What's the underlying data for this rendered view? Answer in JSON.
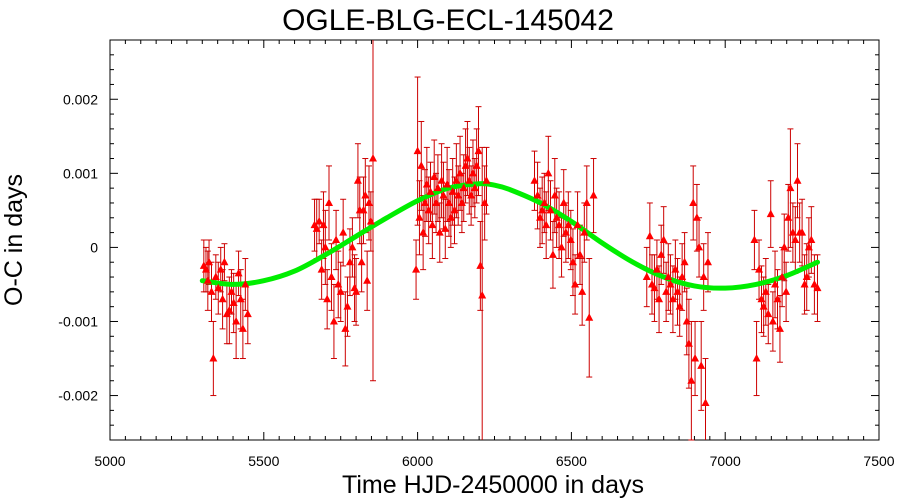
{
  "chart_data": {
    "type": "scatter",
    "title": "OGLE-BLG-ECL-145042",
    "xlabel": "Time HJD-2450000 in days",
    "ylabel": "O-C in days",
    "xlim": [
      5000,
      7500
    ],
    "ylim": [
      -0.0026,
      0.0028
    ],
    "xticks": [
      5000,
      5500,
      6000,
      6500,
      7000,
      7500
    ],
    "xtick_labels": [
      "5000",
      "5500",
      "6000",
      "6500",
      "7000",
      "7500"
    ],
    "yticks": [
      -0.002,
      -0.001,
      0,
      0.001,
      0.002
    ],
    "ytick_labels": [
      "-0.002",
      "-0.001",
      "0",
      "0.001",
      "0.002"
    ],
    "grid": false,
    "colors": {
      "points": "#ff0000",
      "errorbars": "#cc0000",
      "fit": "#00ee00",
      "axes": "#000000"
    },
    "series": [
      {
        "kind": "errorbar-points",
        "marker": "triangle",
        "points": [
          [
            5305,
            -0.00025,
            0.00035
          ],
          [
            5312,
            -0.0003,
            0.0003
          ],
          [
            5318,
            -0.00045,
            0.0004
          ],
          [
            5322,
            -0.0002,
            0.0003
          ],
          [
            5330,
            -0.0006,
            0.0004
          ],
          [
            5336,
            -0.0015,
            0.0005
          ],
          [
            5344,
            -0.0004,
            0.0003
          ],
          [
            5352,
            -0.00055,
            0.00035
          ],
          [
            5360,
            -0.0003,
            0.0003
          ],
          [
            5366,
            -0.0007,
            0.0004
          ],
          [
            5372,
            -0.0002,
            0.00025
          ],
          [
            5380,
            -0.0009,
            0.0004
          ],
          [
            5388,
            -0.00085,
            0.00045
          ],
          [
            5395,
            -0.0006,
            0.0003
          ],
          [
            5402,
            -0.00075,
            0.0004
          ],
          [
            5410,
            -0.001,
            0.0005
          ],
          [
            5418,
            -0.00035,
            0.0003
          ],
          [
            5425,
            -0.0007,
            0.0004
          ],
          [
            5432,
            -0.0011,
            0.0004
          ],
          [
            5440,
            -0.0005,
            0.00035
          ],
          [
            5448,
            -0.0009,
            0.0004
          ],
          [
            5665,
            0.0003,
            0.00035
          ],
          [
            5672,
            0.00025,
            0.0004
          ],
          [
            5680,
            0.00035,
            0.0003
          ],
          [
            5688,
            -0.0003,
            0.0004
          ],
          [
            5694,
            0.0003,
            0.00045
          ],
          [
            5700,
            0.0,
            0.0005
          ],
          [
            5706,
            -0.0007,
            0.0004
          ],
          [
            5712,
            0.0006,
            0.0005
          ],
          [
            5720,
            -0.0004,
            0.00045
          ],
          [
            5728,
            -0.001,
            0.0005
          ],
          [
            5735,
            0.0001,
            0.0004
          ],
          [
            5742,
            -0.0005,
            0.00045
          ],
          [
            5750,
            -0.0006,
            0.0004
          ],
          [
            5758,
            0.0002,
            0.00045
          ],
          [
            5765,
            -0.0011,
            0.0005
          ],
          [
            5772,
            -0.0008,
            0.0004
          ],
          [
            5780,
            -0.0002,
            0.00045
          ],
          [
            5788,
            0.0,
            0.0004
          ],
          [
            5795,
            -0.00055,
            0.00045
          ],
          [
            5800,
            -0.0006,
            0.00045
          ],
          [
            5806,
            0.0009,
            0.0005
          ],
          [
            5812,
            0.0005,
            0.00045
          ],
          [
            5818,
            -0.0002,
            0.0004
          ],
          [
            5824,
            0.0005,
            0.00045
          ],
          [
            5830,
            0.0007,
            0.0005
          ],
          [
            5836,
            -0.00045,
            0.0004
          ],
          [
            5842,
            0.0006,
            0.0005
          ],
          [
            5848,
            0.00035,
            0.0004
          ],
          [
            5855,
            0.0012,
            0.003
          ],
          [
            5995,
            -0.0003,
            0.0004
          ],
          [
            6000,
            0.0013,
            0.001
          ],
          [
            6006,
            0.0004,
            0.0005
          ],
          [
            6012,
            0.0011,
            0.0006
          ],
          [
            6018,
            0.0002,
            0.0005
          ],
          [
            6024,
            0.0006,
            0.00045
          ],
          [
            6030,
            0.00085,
            0.0005
          ],
          [
            6036,
            0.0005,
            0.00045
          ],
          [
            6042,
            0.00075,
            0.0004
          ],
          [
            6048,
            0.0003,
            0.00045
          ],
          [
            6054,
            0.00095,
            0.0005
          ],
          [
            6060,
            0.0006,
            0.0004
          ],
          [
            6066,
            0.0008,
            0.00045
          ],
          [
            6072,
            0.0002,
            0.0004
          ],
          [
            6078,
            0.0009,
            0.0005
          ],
          [
            6084,
            0.0007,
            0.00045
          ],
          [
            6090,
            0.00025,
            0.0004
          ],
          [
            6096,
            0.00085,
            0.0005
          ],
          [
            6102,
            0.0006,
            0.00045
          ],
          [
            6108,
            0.0004,
            0.0004
          ],
          [
            6114,
            0.00075,
            0.00045
          ],
          [
            6120,
            0.0005,
            0.00045
          ],
          [
            6126,
            0.0009,
            0.0005
          ],
          [
            6132,
            0.0007,
            0.0004
          ],
          [
            6138,
            0.001,
            0.0005
          ],
          [
            6144,
            0.0006,
            0.0004
          ],
          [
            6150,
            0.0008,
            0.00045
          ],
          [
            6156,
            0.0011,
            0.0005
          ],
          [
            6162,
            0.0012,
            0.0005
          ],
          [
            6168,
            0.0009,
            0.00045
          ],
          [
            6174,
            0.0007,
            0.0004
          ],
          [
            6180,
            0.001,
            0.00045
          ],
          [
            6186,
            0.0008,
            0.0004
          ],
          [
            6192,
            0.0011,
            0.0005
          ],
          [
            6198,
            0.0013,
            0.0006
          ],
          [
            6204,
            -0.00025,
            0.0006
          ],
          [
            6210,
            -0.00065,
            0.002
          ],
          [
            6218,
            0.0006,
            0.0005
          ],
          [
            6224,
            0.0009,
            0.00045
          ],
          [
            6380,
            0.0009,
            0.0004
          ],
          [
            6390,
            0.0007,
            0.00045
          ],
          [
            6398,
            0.0004,
            0.0004
          ],
          [
            6405,
            0.0005,
            0.00045
          ],
          [
            6412,
            0.0006,
            0.0004
          ],
          [
            6418,
            0.0003,
            0.00045
          ],
          [
            6425,
            0.001,
            0.0005
          ],
          [
            6432,
            0.0005,
            0.0004
          ],
          [
            6440,
            -0.0001,
            0.00045
          ],
          [
            6446,
            0.0007,
            0.0005
          ],
          [
            6452,
            0.0004,
            0.0004
          ],
          [
            6460,
            0.0003,
            0.00045
          ],
          [
            6468,
            0.0,
            0.0004
          ],
          [
            6475,
            0.0006,
            0.00045
          ],
          [
            6482,
            0.0002,
            0.0004
          ],
          [
            6490,
            0.0003,
            0.00045
          ],
          [
            6498,
            0.0001,
            0.0004
          ],
          [
            6505,
            -0.0002,
            0.00045
          ],
          [
            6512,
            -0.0005,
            0.0004
          ],
          [
            6520,
            0.0003,
            0.00045
          ],
          [
            6528,
            -0.0001,
            0.0004
          ],
          [
            6535,
            -0.0006,
            0.00045
          ],
          [
            6542,
            0.0002,
            0.0004
          ],
          [
            6550,
            0.0006,
            0.0005
          ],
          [
            6558,
            -0.00095,
            0.0008
          ],
          [
            6572,
            0.0007,
            0.0005
          ],
          [
            6745,
            -0.0004,
            0.0004
          ],
          [
            6755,
            0.00015,
            0.00045
          ],
          [
            6762,
            -0.0005,
            0.0004
          ],
          [
            6770,
            -0.00055,
            0.00045
          ],
          [
            6778,
            -0.0003,
            0.0004
          ],
          [
            6785,
            -0.0007,
            0.00045
          ],
          [
            6792,
            -0.0001,
            0.0004
          ],
          [
            6800,
            0.0001,
            0.00045
          ],
          [
            6808,
            -0.0006,
            0.0004
          ],
          [
            6815,
            -0.0004,
            0.00045
          ],
          [
            6822,
            -0.0005,
            0.0004
          ],
          [
            6830,
            -0.0007,
            0.00045
          ],
          [
            6838,
            -0.0003,
            0.0004
          ],
          [
            6845,
            -0.0006,
            0.00045
          ],
          [
            6852,
            -0.0008,
            0.0004
          ],
          [
            6860,
            -0.0004,
            0.00045
          ],
          [
            6868,
            -0.0002,
            0.0004
          ],
          [
            6875,
            -0.001,
            0.00045
          ],
          [
            6882,
            -0.0013,
            0.0006
          ],
          [
            6890,
            -0.0018,
            0.0008
          ],
          [
            6896,
            0.0006,
            0.0005
          ],
          [
            6902,
            -0.0015,
            0.0005
          ],
          [
            6908,
            0.0004,
            0.00045
          ],
          [
            6915,
            0.0,
            0.0004
          ],
          [
            6922,
            -0.0016,
            0.0006
          ],
          [
            6930,
            -0.0004,
            0.00045
          ],
          [
            6936,
            -0.0021,
            0.0006
          ],
          [
            6944,
            -0.0002,
            0.0004
          ],
          [
            7095,
            0.0001,
            0.0004
          ],
          [
            7102,
            -0.0015,
            0.0005
          ],
          [
            7110,
            -0.0003,
            0.0004
          ],
          [
            7118,
            -0.0007,
            0.00045
          ],
          [
            7125,
            -0.0008,
            0.0004
          ],
          [
            7132,
            -0.0006,
            0.00045
          ],
          [
            7140,
            -0.0009,
            0.0004
          ],
          [
            7148,
            0.00045,
            0.00045
          ],
          [
            7155,
            -0.001,
            0.0004
          ],
          [
            7162,
            -0.0005,
            0.00045
          ],
          [
            7170,
            -0.0007,
            0.0004
          ],
          [
            7178,
            -0.0011,
            0.00045
          ],
          [
            7185,
            -0.0004,
            0.0004
          ],
          [
            7192,
            0.0,
            0.00045
          ],
          [
            7198,
            -0.0006,
            0.0004
          ],
          [
            7205,
            0.0004,
            0.00045
          ],
          [
            7212,
            0.0008,
            0.0008
          ],
          [
            7220,
            0.0002,
            0.0004
          ],
          [
            7228,
            0.0001,
            0.00045
          ],
          [
            7235,
            0.0009,
            0.0005
          ],
          [
            7242,
            0.0002,
            0.0004
          ],
          [
            7250,
            0.0002,
            0.00045
          ],
          [
            7258,
            -0.0005,
            0.0004
          ],
          [
            7265,
            -0.0004,
            0.00045
          ],
          [
            7272,
            0.0,
            0.0004
          ],
          [
            7280,
            0.0001,
            0.00045
          ],
          [
            7290,
            -0.0005,
            0.0004
          ],
          [
            7300,
            -0.00055,
            0.00045
          ]
        ]
      },
      {
        "kind": "fit-curve",
        "type": "line",
        "x": [
          5300,
          5400,
          5500,
          5600,
          5700,
          5800,
          5900,
          6000,
          6100,
          6200,
          6250,
          6300,
          6400,
          6500,
          6600,
          6700,
          6800,
          6900,
          7000,
          7100,
          7200,
          7300
        ],
        "y": [
          -0.00045,
          -0.0005,
          -0.00045,
          -0.00032,
          -0.0001,
          0.00015,
          0.0004,
          0.00063,
          0.0008,
          0.00086,
          0.00084,
          0.00078,
          0.0006,
          0.00035,
          6e-05,
          -0.0002,
          -0.0004,
          -0.00052,
          -0.00055,
          -0.0005,
          -0.00038,
          -0.0002
        ]
      }
    ]
  }
}
